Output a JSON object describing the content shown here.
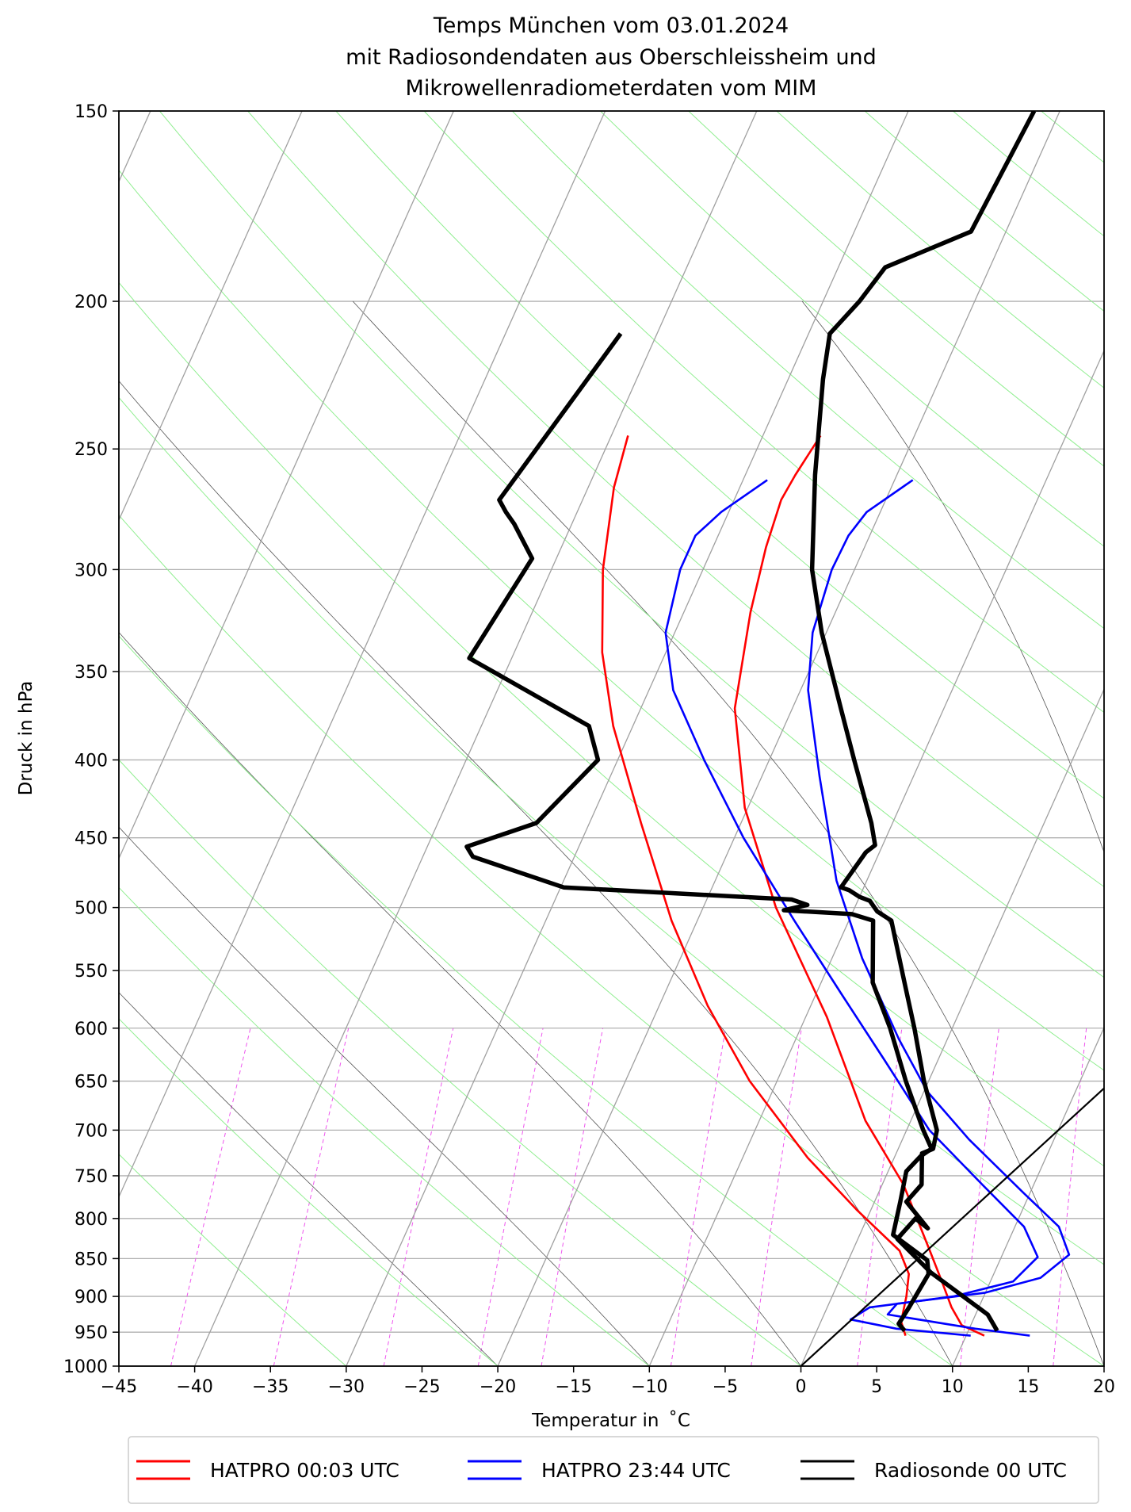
{
  "chart_data": {
    "type": "line",
    "subtype": "skew-t log-p diagram",
    "title_lines": [
      "Temps München vom 03.01.2024",
      "mit Radiosondendaten aus Oberschleissheim und",
      "Mikrowellenradiometerdaten vom MIM"
    ],
    "xlabel": "Temperatur in  ˚C",
    "ylabel": "Druck in hPa",
    "x_ticks": [
      -45,
      -40,
      -35,
      -30,
      -25,
      -20,
      -15,
      -10,
      -5,
      0,
      5,
      10,
      15,
      20
    ],
    "x_tick_labels": [
      "−45",
      "−40",
      "−35",
      "−30",
      "−25",
      "−20",
      "−15",
      "−10",
      "−5",
      "0",
      "5",
      "10",
      "15",
      "20"
    ],
    "y_ticks": [
      150,
      200,
      250,
      300,
      350,
      400,
      450,
      500,
      550,
      600,
      650,
      700,
      750,
      800,
      850,
      900,
      950,
      1000
    ],
    "y_tick_labels": [
      "150",
      "200",
      "250",
      "300",
      "350",
      "400",
      "450",
      "500",
      "550",
      "600",
      "650",
      "700",
      "750",
      "800",
      "850",
      "900",
      "950",
      "1000"
    ],
    "xlim": [
      -45,
      20
    ],
    "ylim": [
      1000,
      150
    ],
    "y_scale": "log",
    "grid": true,
    "legend_position": "bottom, below axes",
    "legend": [
      {
        "label": "HATPRO 00:03 UTC",
        "color": "#ff0000"
      },
      {
        "label": "HATPRO 23:44 UTC",
        "color": "#0000ff"
      },
      {
        "label": "Radiosonde 00 UTC",
        "color": "#000000"
      }
    ],
    "series": [
      {
        "name": "HATPRO 00:03 UTC",
        "variable": "temperature",
        "color": "#ff0000",
        "points": [
          [
            11.2,
            955
          ],
          [
            9.4,
            940
          ],
          [
            8.2,
            915
          ],
          [
            6.8,
            880
          ],
          [
            5.1,
            840
          ],
          [
            1.4,
            760
          ],
          [
            -3.0,
            690
          ],
          [
            -8.6,
            590
          ],
          [
            -15.2,
            500
          ],
          [
            -20.2,
            430
          ],
          [
            -23.8,
            370
          ],
          [
            -25.6,
            320
          ],
          [
            -26.5,
            290
          ],
          [
            -26.9,
            270
          ],
          [
            -26.7,
            260
          ],
          [
            -26.2,
            245
          ]
        ]
      },
      {
        "name": "HATPRO 00:03 UTC",
        "variable": "dewpoint",
        "color": "#ff0000",
        "points": [
          [
            6.0,
            955
          ],
          [
            5.3,
            935
          ],
          [
            4.9,
            900
          ],
          [
            4.4,
            870
          ],
          [
            3.1,
            840
          ],
          [
            -0.9,
            790
          ],
          [
            -5.7,
            730
          ],
          [
            -11.8,
            650
          ],
          [
            -16.8,
            580
          ],
          [
            -21.7,
            510
          ],
          [
            -26.6,
            440
          ],
          [
            -31.3,
            380
          ],
          [
            -34.2,
            340
          ],
          [
            -36.6,
            300
          ],
          [
            -38.3,
            265
          ],
          [
            -38.9,
            245
          ]
        ]
      },
      {
        "name": "HATPRO 23:44 UTC",
        "variable": "temperature",
        "color": "#0000ff",
        "points": [
          [
            14.2,
            955
          ],
          [
            10.4,
            945
          ],
          [
            4.2,
            925
          ],
          [
            4.5,
            910
          ],
          [
            10.0,
            895
          ],
          [
            13.2,
            875
          ],
          [
            14.4,
            845
          ],
          [
            12.9,
            810
          ],
          [
            9.6,
            770
          ],
          [
            4.4,
            710
          ],
          [
            0.2,
            660
          ],
          [
            -3.2,
            610
          ],
          [
            -8.0,
            540
          ],
          [
            -12.0,
            480
          ],
          [
            -16.2,
            410
          ],
          [
            -19.5,
            360
          ],
          [
            -20.9,
            330
          ],
          [
            -21.5,
            300
          ],
          [
            -21.4,
            285
          ],
          [
            -20.9,
            275
          ],
          [
            -18.8,
            262
          ]
        ]
      },
      {
        "name": "HATPRO 23:44 UTC",
        "variable": "dewpoint",
        "color": "#0000ff",
        "points": [
          [
            10.3,
            955
          ],
          [
            5.2,
            945
          ],
          [
            1.9,
            932
          ],
          [
            2.8,
            915
          ],
          [
            8.0,
            900
          ],
          [
            11.5,
            880
          ],
          [
            12.4,
            848
          ],
          [
            10.6,
            810
          ],
          [
            6.6,
            760
          ],
          [
            1.5,
            700
          ],
          [
            -3.5,
            630
          ],
          [
            -8.3,
            570
          ],
          [
            -13.6,
            510
          ],
          [
            -19.4,
            450
          ],
          [
            -24.3,
            400
          ],
          [
            -28.4,
            360
          ],
          [
            -30.6,
            330
          ],
          [
            -31.5,
            300
          ],
          [
            -31.5,
            285
          ],
          [
            -30.5,
            275
          ],
          [
            -28.4,
            262
          ]
        ]
      },
      {
        "name": "Radiosonde 00 UTC",
        "variable": "temperature",
        "color": "#000000",
        "points": [
          [
            11.9,
            948
          ],
          [
            10.8,
            925
          ],
          [
            5.8,
            868
          ],
          [
            2.6,
            825
          ],
          [
            3.2,
            800
          ],
          [
            4.3,
            812
          ],
          [
            2.1,
            780
          ],
          [
            2.6,
            760
          ],
          [
            1.7,
            725
          ],
          [
            2.3,
            720
          ],
          [
            2.0,
            700
          ],
          [
            -0.3,
            650
          ],
          [
            -2.5,
            600
          ],
          [
            -4.5,
            560
          ],
          [
            -7.2,
            510
          ],
          [
            -8.4,
            503
          ],
          [
            -9.2,
            495
          ],
          [
            -10.0,
            492
          ],
          [
            -10.9,
            487
          ],
          [
            -11.5,
            485
          ],
          [
            -10.9,
            460
          ],
          [
            -10.5,
            455
          ],
          [
            -11.4,
            440
          ],
          [
            -14.4,
            400
          ],
          [
            -16.8,
            370
          ],
          [
            -20.3,
            330
          ],
          [
            -22.8,
            300
          ],
          [
            -25.4,
            260
          ],
          [
            -27.7,
            225
          ],
          [
            -28.6,
            210
          ],
          [
            -27.6,
            200
          ],
          [
            -26.9,
            190
          ],
          [
            -22.3,
            180
          ],
          [
            -21.7,
            150
          ]
        ]
      },
      {
        "name": "Radiosonde 00 UTC",
        "variable": "dewpoint",
        "color": "#000000",
        "points": [
          [
            5.8,
            948
          ],
          [
            5.2,
            938
          ],
          [
            5.4,
            915
          ],
          [
            5.7,
            870
          ],
          [
            5.2,
            852
          ],
          [
            2.2,
            820
          ],
          [
            1.7,
            780
          ],
          [
            1.2,
            745
          ],
          [
            1.7,
            728
          ],
          [
            2.2,
            720
          ],
          [
            1.1,
            700
          ],
          [
            -1.5,
            650
          ],
          [
            -4.1,
            600
          ],
          [
            -6.6,
            560
          ],
          [
            -8.4,
            510
          ],
          [
            -10.0,
            505
          ],
          [
            -14.6,
            502
          ],
          [
            -13.2,
            498
          ],
          [
            -14.4,
            494
          ],
          [
            -29.8,
            485
          ],
          [
            -36.7,
            463
          ],
          [
            -37.4,
            456
          ],
          [
            -33.5,
            440
          ],
          [
            -31.3,
            400
          ],
          [
            -32.9,
            380
          ],
          [
            -42.8,
            343
          ],
          [
            -41.6,
            295
          ],
          [
            -43.8,
            280
          ],
          [
            -44.7,
            275
          ],
          [
            -45.5,
            270
          ],
          [
            -42.4,
            210
          ]
        ]
      },
      {
        "name": "",
        "variable": "reference line",
        "color": "#000000",
        "points": [
          [
            0,
            1000
          ],
          [
            28.3,
            365
          ]
        ]
      }
    ]
  }
}
